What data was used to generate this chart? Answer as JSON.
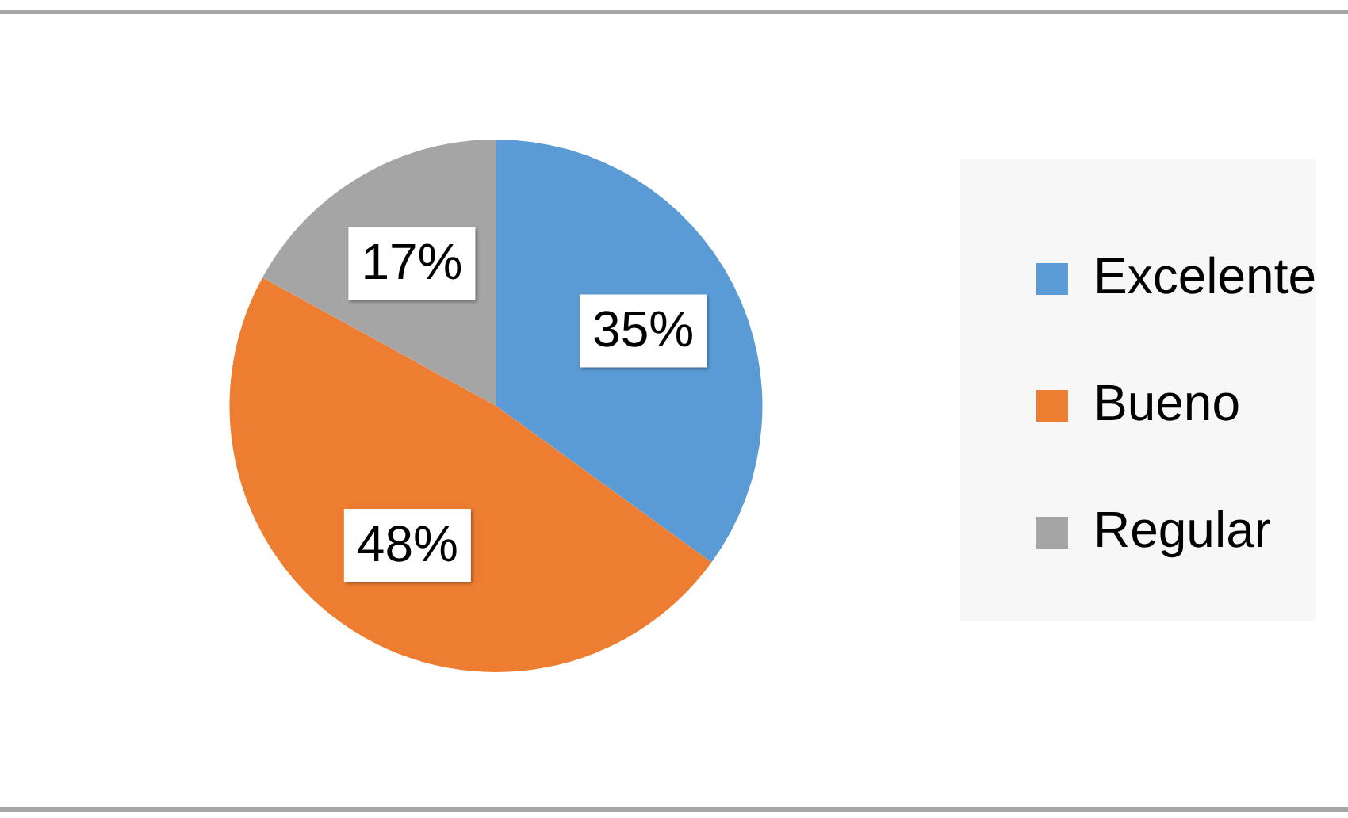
{
  "chart_data": {
    "type": "pie",
    "categories": [
      "Excelente",
      "Bueno",
      "Regular"
    ],
    "values": [
      35,
      48,
      17
    ],
    "colors": [
      "#5b9bd5",
      "#ed7d31",
      "#a5a5a5"
    ],
    "value_labels": [
      "35%",
      "48%",
      "17%"
    ],
    "legend": "right"
  }
}
